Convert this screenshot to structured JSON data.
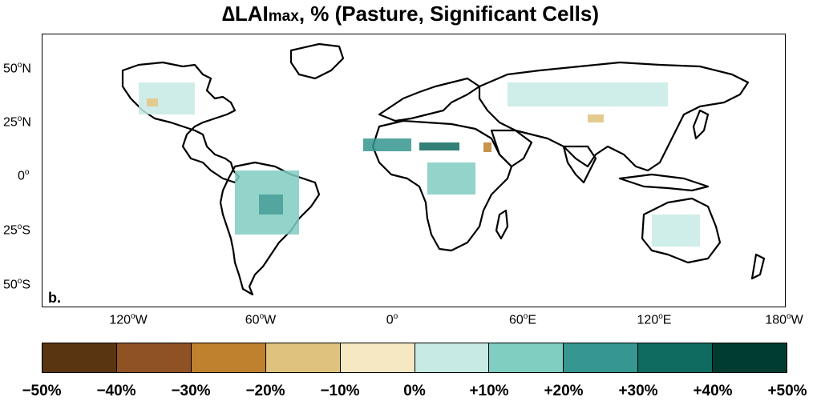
{
  "title": {
    "prefix": "∆LAI",
    "subscript": "max",
    "rest": ", % (Pasture, Significant Cells)"
  },
  "panel_label": "b.",
  "axes": {
    "y_labels": [
      {
        "value": "50",
        "deg": "o",
        "hemi": "N"
      },
      {
        "value": "25",
        "deg": "o",
        "hemi": "N"
      },
      {
        "value": "0",
        "deg": "o",
        "hemi": ""
      },
      {
        "value": "25",
        "deg": "o",
        "hemi": "S"
      },
      {
        "value": "50",
        "deg": "o",
        "hemi": "S"
      }
    ],
    "x_labels": [
      {
        "value": "120",
        "deg": "o",
        "hemi": "W"
      },
      {
        "value": "60",
        "deg": "o",
        "hemi": "W"
      },
      {
        "value": "0",
        "deg": "o",
        "hemi": ""
      },
      {
        "value": "60",
        "deg": "o",
        "hemi": "E"
      },
      {
        "value": "120",
        "deg": "o",
        "hemi": "E"
      },
      {
        "value": "180",
        "deg": "o",
        "hemi": "W"
      }
    ]
  },
  "colorbar": {
    "colors": [
      "#5a3512",
      "#8f5224",
      "#bf812d",
      "#dfc27d",
      "#f6e8c3",
      "#c7eae5",
      "#80cdc1",
      "#35978f",
      "#0f6b60",
      "#013c30"
    ],
    "labels": [
      "−50%",
      "−40%",
      "−30%",
      "−20%",
      "−10%",
      "0%",
      "+10%",
      "+20%",
      "+30%",
      "+40%",
      "+50%"
    ]
  }
}
